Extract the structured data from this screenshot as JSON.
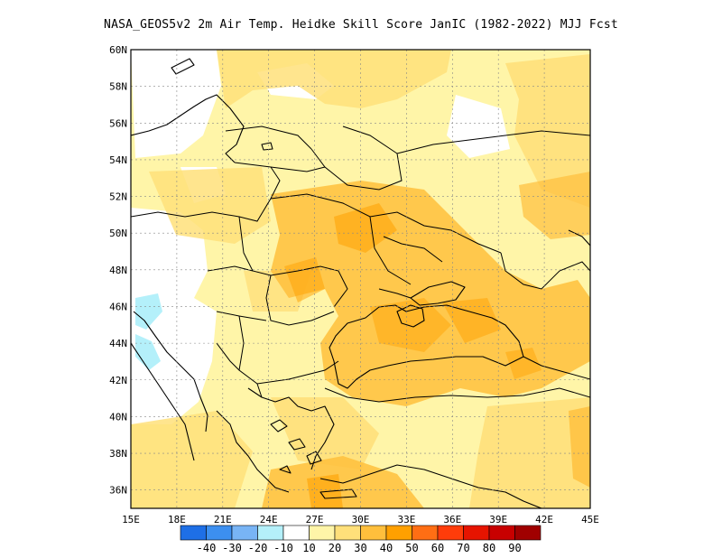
{
  "title": "NASA_GEOS5v2  2m Air Temp. Heidke Skill Score JanIC (1982-2022) MJJ Fcst",
  "map": {
    "lon_range": [
      15,
      45
    ],
    "lat_range": [
      35,
      60
    ],
    "x_ticks": [
      "15E",
      "18E",
      "21E",
      "24E",
      "27E",
      "30E",
      "33E",
      "36E",
      "39E",
      "42E",
      "45E"
    ],
    "y_ticks": [
      "36N",
      "38N",
      "40N",
      "42N",
      "44N",
      "46N",
      "48N",
      "50N",
      "52N",
      "54N",
      "56N",
      "58N",
      "60N"
    ],
    "gridlines": "dotted"
  },
  "colorbar": {
    "labels": [
      "-40",
      "-30",
      "-20",
      "-10",
      "10",
      "20",
      "30",
      "40",
      "50",
      "60",
      "70",
      "80",
      "90"
    ],
    "colors": [
      "#1e6fe6",
      "#3c8ff0",
      "#78b4f5",
      "#b4f0fa",
      "#ffffff",
      "#fff5a8",
      "#ffe07a",
      "#ffbf3c",
      "#ffa000",
      "#ff6e14",
      "#ff3c0a",
      "#e61400",
      "#c80000",
      "#a00000"
    ]
  }
}
